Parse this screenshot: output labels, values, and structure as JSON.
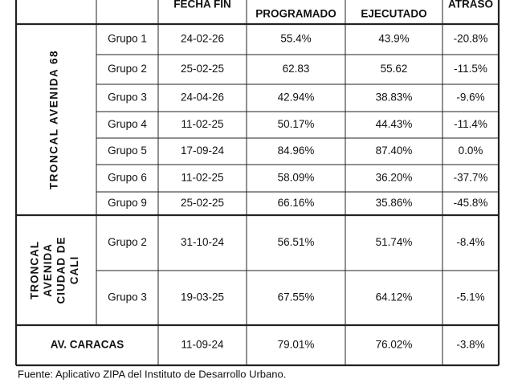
{
  "header": {
    "columns": [
      {
        "text": "FECHA FIN",
        "col": 2,
        "y": 6
      },
      {
        "text": "PROGRAMADO",
        "col": 3,
        "y": 18
      },
      {
        "text": "EJECUTADO",
        "col": 4,
        "y": 18
      },
      {
        "text": "ATRASO",
        "col": 5,
        "y": 6
      }
    ]
  },
  "table": {
    "sections": [
      {
        "label": "TRONCAL AVENIDA 68",
        "rows": [
          [
            "Grupo 1",
            "24-02-26",
            "55.4%",
            "43.9%",
            "-20.8%"
          ],
          [
            "Grupo 2",
            "25-02-25",
            "62.83",
            "55.62",
            "-11.5%"
          ],
          [
            "Grupo 3",
            "24-04-26",
            "42.94%",
            "38.83%",
            "-9.6%"
          ],
          [
            "Grupo 4",
            "11-02-25",
            "50.17%",
            "44.43%",
            "-11.4%"
          ],
          [
            "Grupo 5",
            "17-09-24",
            "84.96%",
            "87.40%",
            "0.0%"
          ],
          [
            "Grupo 6",
            "11-02-25",
            "58.09%",
            "36.20%",
            "-37.7%"
          ],
          [
            "Grupo 9",
            "25-02-25",
            "66.16%",
            "35.86%",
            "-45.8%"
          ]
        ]
      },
      {
        "label_lines": [
          "TRONCAL",
          "AVENIDA",
          "CIUDAD DE",
          "CALI"
        ],
        "rows": [
          [
            "Grupo 2",
            "31-10-24",
            "56.51%",
            "51.74%",
            "-8.4%"
          ],
          [
            "Grupo 3",
            "19-03-25",
            "67.55%",
            "64.12%",
            "-5.1%"
          ]
        ]
      },
      {
        "label": "AV. CARACAS",
        "rows": [
          [
            "11-09-24",
            "79.01%",
            "76.02%",
            "-3.8%"
          ]
        ]
      }
    ]
  },
  "footnote": "Fuente: Aplicativo ZIPA del Instituto de Desarrollo Urbano."
}
